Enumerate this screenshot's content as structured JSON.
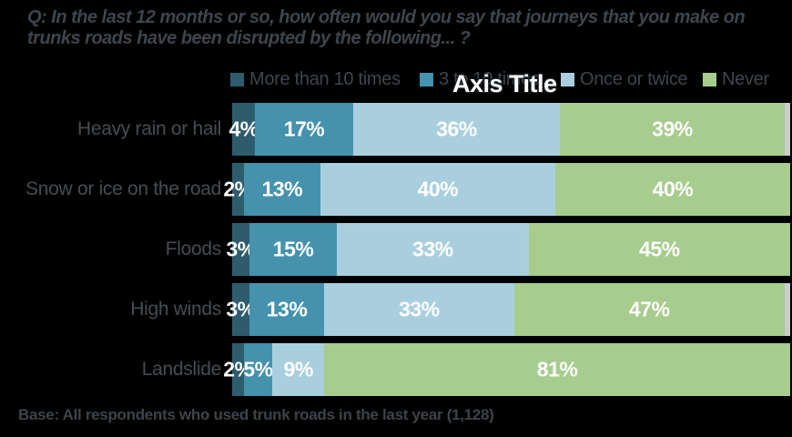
{
  "title": "Q: In the last 12 months or so, how often would you say that journeys that you make on trunks roads have been disrupted by the following... ?",
  "axis_title": "Axis Title",
  "base_note": "Base: All respondents who used trunk roads in the last year (1,128)",
  "colors": {
    "background": "#000000",
    "text_gray": "#3f454b",
    "label_white": "#ffffff",
    "remainder_gray": "#c9cbcd"
  },
  "chart_data": {
    "type": "bar",
    "variant": "horizontal-stacked-100",
    "categories": [
      "Heavy rain or hail",
      "Snow or ice on the road",
      "Floods",
      "High winds",
      "Landslide"
    ],
    "series": [
      {
        "name": "More than 10 times",
        "color": "#2D5C6D",
        "values": [
          4,
          2,
          3,
          3,
          2
        ]
      },
      {
        "name": "3 to 10 times",
        "color": "#4492AE",
        "values": [
          17,
          13,
          15,
          13,
          5
        ]
      },
      {
        "name": "Once or twice",
        "color": "#A9CFDF",
        "values": [
          36,
          40,
          33,
          33,
          9
        ]
      },
      {
        "name": "Never",
        "color": "#A6CC8E",
        "values": [
          39,
          40,
          45,
          47,
          81
        ]
      }
    ],
    "remainder_unlabeled": [
      1,
      0,
      0,
      1,
      0
    ],
    "value_suffix": "%",
    "xlim": [
      0,
      100
    ],
    "grid": false,
    "legend_position": "top",
    "data_labels": true
  }
}
